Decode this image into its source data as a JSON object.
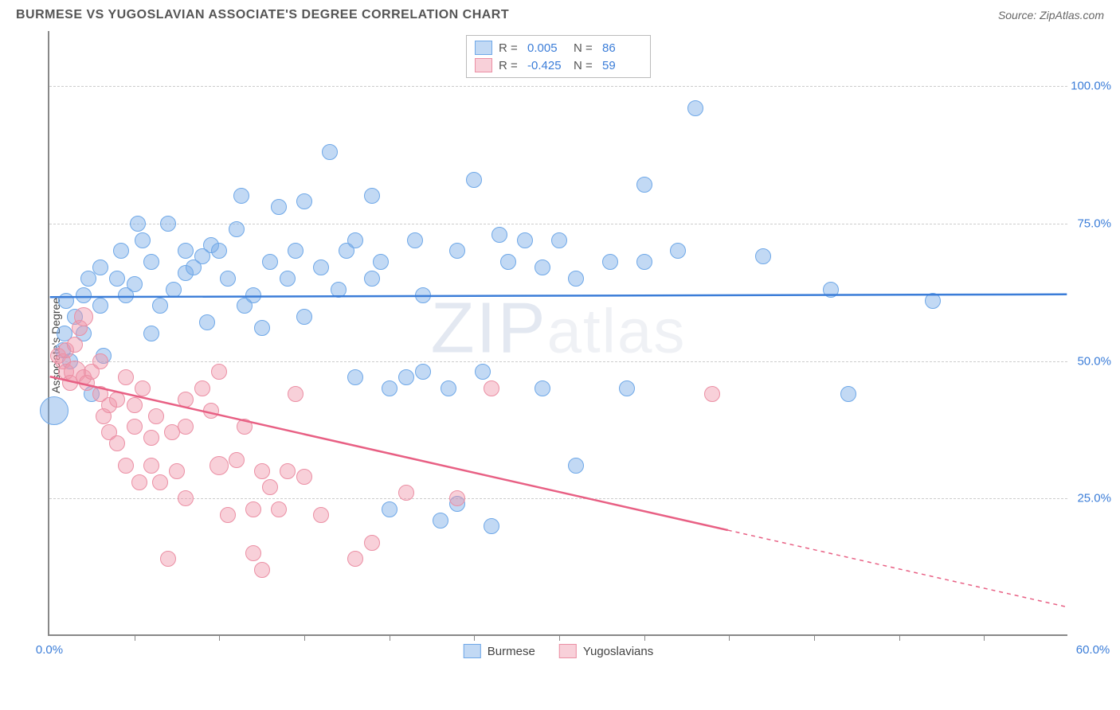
{
  "title": "BURMESE VS YUGOSLAVIAN ASSOCIATE'S DEGREE CORRELATION CHART",
  "source": "Source: ZipAtlas.com",
  "ylabel": "Associate's Degree",
  "watermark": "ZIPatlas",
  "chart": {
    "type": "scatter",
    "background_color": "#ffffff",
    "grid_color": "#cccccc",
    "axis_color": "#888888",
    "tick_label_color": "#3b7dd8",
    "xlim": [
      0,
      60
    ],
    "ylim": [
      0,
      110
    ],
    "xtick_step": 5,
    "x_labeled_ticks": [
      {
        "v": 0,
        "label": "0.0%"
      },
      {
        "v": 60,
        "label": "60.0%"
      }
    ],
    "y_gridlines": [
      {
        "v": 25,
        "label": "25.0%"
      },
      {
        "v": 50,
        "label": "50.0%"
      },
      {
        "v": 75,
        "label": "75.0%"
      },
      {
        "v": 100,
        "label": "100.0%"
      }
    ],
    "series": [
      {
        "name": "Burmese",
        "color_fill": "rgba(120,170,230,0.45)",
        "color_stroke": "#6fa8e8",
        "trend_color": "#3b7dd8",
        "trend": {
          "y_at_x0": 61.5,
          "y_at_x60": 62.0,
          "solid_until_x": 60
        },
        "R": "0.005",
        "N": "86",
        "marker_radius": 9,
        "points": [
          [
            0.3,
            41,
            18
          ],
          [
            0.8,
            52,
            10
          ],
          [
            0.9,
            55,
            10
          ],
          [
            1,
            61,
            10
          ],
          [
            1.2,
            50,
            10
          ],
          [
            1.5,
            58,
            10
          ],
          [
            2,
            62,
            10
          ],
          [
            2,
            55,
            10
          ],
          [
            2.3,
            65,
            10
          ],
          [
            2.5,
            44,
            10
          ],
          [
            3,
            60,
            10
          ],
          [
            3,
            67,
            10
          ],
          [
            3.2,
            51,
            10
          ],
          [
            4,
            65,
            10
          ],
          [
            4.2,
            70,
            10
          ],
          [
            4.5,
            62,
            10
          ],
          [
            5,
            64,
            10
          ],
          [
            5.2,
            75,
            10
          ],
          [
            5.5,
            72,
            10
          ],
          [
            6,
            55,
            10
          ],
          [
            6,
            68,
            10
          ],
          [
            6.5,
            60,
            10
          ],
          [
            7,
            75,
            10
          ],
          [
            7.3,
            63,
            10
          ],
          [
            8,
            70,
            10
          ],
          [
            8,
            66,
            10
          ],
          [
            8.5,
            67,
            10
          ],
          [
            9,
            69,
            10
          ],
          [
            9.3,
            57,
            10
          ],
          [
            9.5,
            71,
            10
          ],
          [
            10,
            70,
            10
          ],
          [
            10.5,
            65,
            10
          ],
          [
            11,
            74,
            10
          ],
          [
            11.3,
            80,
            10
          ],
          [
            11.5,
            60,
            10
          ],
          [
            12,
            62,
            10
          ],
          [
            12.5,
            56,
            10
          ],
          [
            13,
            68,
            10
          ],
          [
            13.5,
            78,
            10
          ],
          [
            14,
            65,
            10
          ],
          [
            14.5,
            70,
            10
          ],
          [
            15,
            79,
            10
          ],
          [
            15,
            58,
            10
          ],
          [
            16,
            67,
            10
          ],
          [
            16.5,
            88,
            10
          ],
          [
            17,
            63,
            10
          ],
          [
            17.5,
            70,
            10
          ],
          [
            18,
            72,
            10
          ],
          [
            18,
            47,
            10
          ],
          [
            19,
            80,
            10
          ],
          [
            19,
            65,
            10
          ],
          [
            19.5,
            68,
            10
          ],
          [
            20,
            45,
            10
          ],
          [
            20,
            23,
            10
          ],
          [
            21,
            47,
            10
          ],
          [
            21.5,
            72,
            10
          ],
          [
            22,
            62,
            10
          ],
          [
            22,
            48,
            10
          ],
          [
            23,
            21,
            10
          ],
          [
            23.5,
            45,
            10
          ],
          [
            24,
            70,
            10
          ],
          [
            24,
            24,
            10
          ],
          [
            25,
            83,
            10
          ],
          [
            25.5,
            48,
            10
          ],
          [
            26,
            20,
            10
          ],
          [
            26.5,
            73,
            10
          ],
          [
            27,
            68,
            10
          ],
          [
            28,
            72,
            10
          ],
          [
            29,
            67,
            10
          ],
          [
            29,
            45,
            10
          ],
          [
            30,
            72,
            10
          ],
          [
            31,
            65,
            10
          ],
          [
            31,
            31,
            10
          ],
          [
            33,
            68,
            10
          ],
          [
            34,
            45,
            10
          ],
          [
            35,
            82,
            10
          ],
          [
            35,
            68,
            10
          ],
          [
            37,
            70,
            10
          ],
          [
            38,
            96,
            10
          ],
          [
            42,
            69,
            10
          ],
          [
            46,
            63,
            10
          ],
          [
            47,
            44,
            10
          ],
          [
            52,
            61,
            10
          ]
        ]
      },
      {
        "name": "Yugoslavians",
        "color_fill": "rgba(240,150,170,0.45)",
        "color_stroke": "#eb8fa4",
        "trend_color": "#e86084",
        "trend": {
          "y_at_x0": 47,
          "y_at_x60": 5,
          "solid_until_x": 40
        },
        "R": "-0.425",
        "N": "59",
        "marker_radius": 9,
        "points": [
          [
            0.5,
            51,
            10
          ],
          [
            0.8,
            50,
            10
          ],
          [
            1,
            48,
            10
          ],
          [
            1,
            52,
            10
          ],
          [
            1.2,
            46,
            10
          ],
          [
            1.5,
            53,
            10
          ],
          [
            1.5,
            48,
            14
          ],
          [
            1.8,
            56,
            10
          ],
          [
            2,
            58,
            12
          ],
          [
            2,
            47,
            10
          ],
          [
            2.2,
            46,
            10
          ],
          [
            2.5,
            48,
            10
          ],
          [
            3,
            50,
            10
          ],
          [
            3,
            44,
            10
          ],
          [
            3.2,
            40,
            10
          ],
          [
            3.5,
            42,
            10
          ],
          [
            3.5,
            37,
            10
          ],
          [
            4,
            43,
            10
          ],
          [
            4,
            35,
            10
          ],
          [
            4.5,
            47,
            10
          ],
          [
            4.5,
            31,
            10
          ],
          [
            5,
            42,
            10
          ],
          [
            5,
            38,
            10
          ],
          [
            5.3,
            28,
            10
          ],
          [
            5.5,
            45,
            10
          ],
          [
            6,
            36,
            10
          ],
          [
            6,
            31,
            10
          ],
          [
            6.3,
            40,
            10
          ],
          [
            6.5,
            28,
            10
          ],
          [
            7,
            14,
            10
          ],
          [
            7.2,
            37,
            10
          ],
          [
            7.5,
            30,
            10
          ],
          [
            8,
            43,
            10
          ],
          [
            8,
            25,
            10
          ],
          [
            8,
            38,
            10
          ],
          [
            9,
            45,
            10
          ],
          [
            9.5,
            41,
            10
          ],
          [
            10,
            31,
            12
          ],
          [
            10,
            48,
            10
          ],
          [
            10.5,
            22,
            10
          ],
          [
            11,
            32,
            10
          ],
          [
            11.5,
            38,
            10
          ],
          [
            12,
            15,
            10
          ],
          [
            12,
            23,
            10
          ],
          [
            12.5,
            30,
            10
          ],
          [
            12.5,
            12,
            10
          ],
          [
            13,
            27,
            10
          ],
          [
            13.5,
            23,
            10
          ],
          [
            14,
            30,
            10
          ],
          [
            14.5,
            44,
            10
          ],
          [
            15,
            29,
            10
          ],
          [
            16,
            22,
            10
          ],
          [
            18,
            14,
            10
          ],
          [
            19,
            17,
            10
          ],
          [
            21,
            26,
            10
          ],
          [
            24,
            25,
            10
          ],
          [
            26,
            45,
            10
          ],
          [
            39,
            44,
            10
          ]
        ]
      }
    ],
    "legend": {
      "stats_rows": [
        {
          "swatch_fill": "rgba(120,170,230,0.45)",
          "swatch_stroke": "#6fa8e8",
          "R_label": "R =",
          "R": "0.005",
          "N_label": "N =",
          "N": "86"
        },
        {
          "swatch_fill": "rgba(240,150,170,0.45)",
          "swatch_stroke": "#eb8fa4",
          "R_label": "R =",
          "R": "-0.425",
          "N_label": "N =",
          "N": "59"
        }
      ],
      "bottom": [
        {
          "swatch_fill": "rgba(120,170,230,0.45)",
          "swatch_stroke": "#6fa8e8",
          "label": "Burmese"
        },
        {
          "swatch_fill": "rgba(240,150,170,0.45)",
          "swatch_stroke": "#eb8fa4",
          "label": "Yugoslavians"
        }
      ]
    }
  }
}
